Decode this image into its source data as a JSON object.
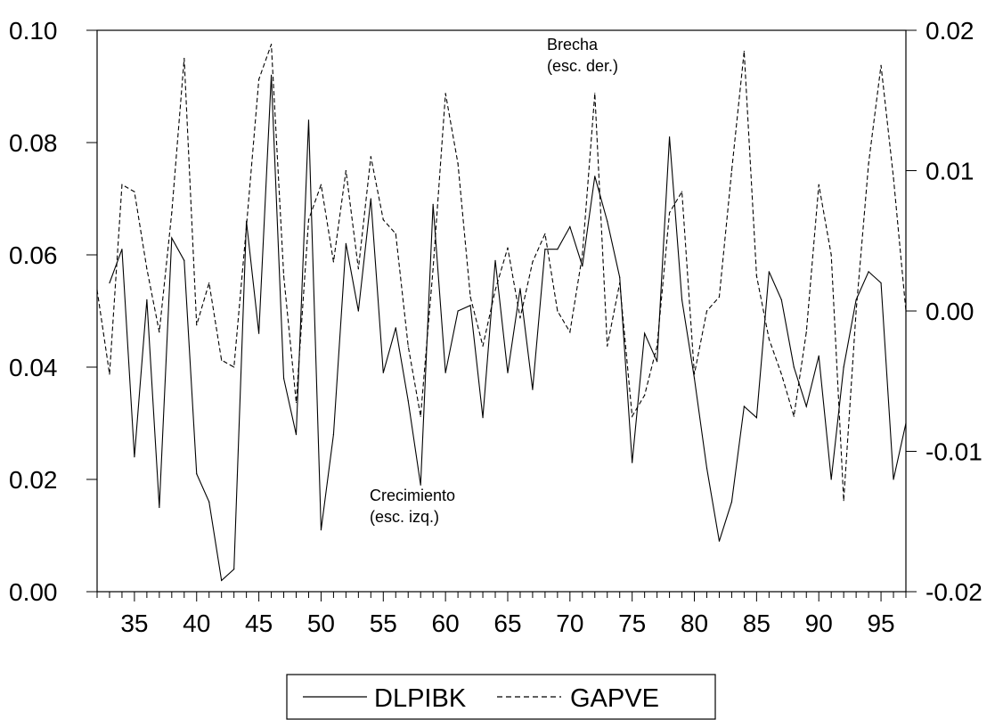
{
  "chart_data": {
    "type": "line",
    "x": [
      32,
      33,
      34,
      35,
      36,
      37,
      38,
      39,
      40,
      41,
      42,
      43,
      44,
      45,
      46,
      47,
      48,
      49,
      50,
      51,
      52,
      53,
      54,
      55,
      56,
      57,
      58,
      59,
      60,
      61,
      62,
      63,
      64,
      65,
      66,
      67,
      68,
      69,
      70,
      71,
      72,
      73,
      74,
      75,
      76,
      77,
      78,
      79,
      80,
      81,
      82,
      83,
      84,
      85,
      86,
      87,
      88,
      89,
      90,
      91,
      92,
      93,
      94,
      95,
      96,
      97
    ],
    "xlim": [
      32,
      97
    ],
    "x_ticks": [
      "35",
      "40",
      "45",
      "50",
      "55",
      "60",
      "65",
      "70",
      "75",
      "80",
      "85",
      "90",
      "95"
    ],
    "x_tick_values": [
      35,
      40,
      45,
      50,
      55,
      60,
      65,
      70,
      75,
      80,
      85,
      90,
      95
    ],
    "y_left_ticks": [
      "0.00",
      "0.02",
      "0.04",
      "0.06",
      "0.08",
      "0.10"
    ],
    "y_left_lim": [
      0.0,
      0.1
    ],
    "y_right_ticks": [
      "-0.02",
      "-0.01",
      "0.00",
      "0.01",
      "0.02"
    ],
    "y_right_lim": [
      -0.02,
      0.02
    ],
    "series": [
      {
        "name": "DLPIBK",
        "axis": "left",
        "style": "solid",
        "values": [
          null,
          0.055,
          0.061,
          0.024,
          0.052,
          0.015,
          0.063,
          0.059,
          0.021,
          0.016,
          0.002,
          0.004,
          0.066,
          0.046,
          0.092,
          0.038,
          0.028,
          0.084,
          0.011,
          0.028,
          0.062,
          0.05,
          0.07,
          0.039,
          0.047,
          0.034,
          0.019,
          0.069,
          0.039,
          0.05,
          0.051,
          0.031,
          0.059,
          0.039,
          0.054,
          0.036,
          0.061,
          0.061,
          0.065,
          0.058,
          0.074,
          0.066,
          0.056,
          0.023,
          0.046,
          0.041,
          0.081,
          0.052,
          0.038,
          0.022,
          0.009,
          0.016,
          0.033,
          0.031,
          0.057,
          0.052,
          0.04,
          0.033,
          0.042,
          0.02,
          0.04,
          0.052,
          0.057,
          0.055,
          0.02,
          0.03
        ]
      },
      {
        "name": "GAPVE",
        "axis": "right",
        "style": "dashed",
        "values": [
          0.0015,
          -0.0045,
          0.009,
          0.0085,
          0.003,
          -0.0015,
          0.007,
          0.018,
          -0.001,
          0.002,
          -0.0035,
          -0.004,
          0.006,
          0.0165,
          0.019,
          0.0025,
          -0.0065,
          0.0065,
          0.009,
          0.0035,
          0.01,
          0.003,
          0.011,
          0.0065,
          0.0055,
          -0.0025,
          -0.0075,
          0.003,
          0.0155,
          0.0105,
          0.001,
          -0.0025,
          0.0015,
          0.0045,
          -0.0005,
          0.0035,
          0.0055,
          0.0,
          -0.0015,
          0.004,
          0.0155,
          -0.0025,
          0.002,
          -0.0075,
          -0.006,
          -0.0025,
          0.007,
          0.0085,
          -0.0045,
          0.0,
          0.001,
          0.01,
          0.0185,
          0.0025,
          -0.002,
          -0.0045,
          -0.0075,
          -0.0015,
          0.009,
          0.004,
          -0.0135,
          0.0,
          0.0105,
          0.0175,
          0.0095,
          0.0
        ]
      }
    ],
    "annotations": [
      {
        "text_lines": [
          "Brecha",
          "(esc. der.)"
        ],
        "x": 74.5,
        "y_left": 0.0975
      },
      {
        "text_lines": [
          "Crecimiento",
          "(esc. izq.)"
        ],
        "x": 60.2,
        "y_left": 0.0165
      }
    ],
    "legend": {
      "placement": "bottom-center",
      "entries": [
        "DLPIBK",
        "GAPVE"
      ]
    }
  }
}
